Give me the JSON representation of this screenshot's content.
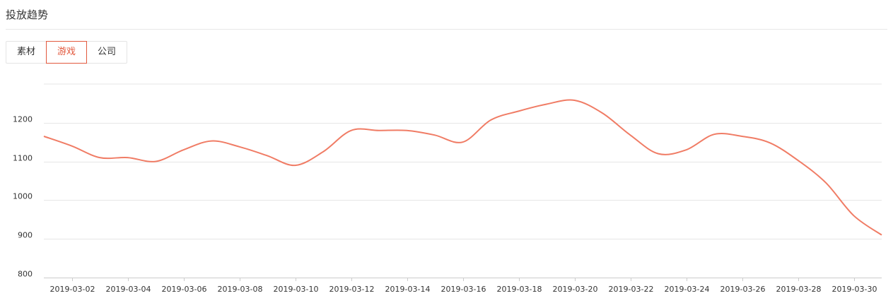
{
  "header": {
    "title": "投放趋势"
  },
  "tabs": [
    {
      "label": "素材",
      "active": false
    },
    {
      "label": "游戏",
      "active": true
    },
    {
      "label": "公司",
      "active": false
    }
  ],
  "colors": {
    "accent": "#e2583d",
    "line": "#f07c65",
    "grid": "#e6e6e6"
  },
  "chart_data": {
    "type": "line",
    "title": "",
    "xlabel": "",
    "ylabel": "",
    "ylim": [
      800,
      1300
    ],
    "yticks": [
      800,
      900,
      1000,
      1100,
      1200
    ],
    "grid": true,
    "x": [
      "2019-03-01",
      "2019-03-02",
      "2019-03-03",
      "2019-03-04",
      "2019-03-05",
      "2019-03-06",
      "2019-03-07",
      "2019-03-08",
      "2019-03-09",
      "2019-03-10",
      "2019-03-11",
      "2019-03-12",
      "2019-03-13",
      "2019-03-14",
      "2019-03-15",
      "2019-03-16",
      "2019-03-17",
      "2019-03-18",
      "2019-03-19",
      "2019-03-20",
      "2019-03-21",
      "2019-03-22",
      "2019-03-23",
      "2019-03-24",
      "2019-03-25",
      "2019-03-26",
      "2019-03-27",
      "2019-03-28",
      "2019-03-29",
      "2019-03-30",
      "2019-03-31"
    ],
    "xtick_labels": [
      "2019-03-02",
      "2019-03-04",
      "2019-03-06",
      "2019-03-08",
      "2019-03-10",
      "2019-03-12",
      "2019-03-14",
      "2019-03-16",
      "2019-03-18",
      "2019-03-20",
      "2019-03-22",
      "2019-03-24",
      "2019-03-26",
      "2019-03-28",
      "2019-03-30"
    ],
    "series": [
      {
        "values": [
          1165,
          1140,
          1110,
          1110,
          1100,
          1130,
          1153,
          1138,
          1115,
          1090,
          1125,
          1180,
          1180,
          1180,
          1168,
          1150,
          1207,
          1230,
          1248,
          1258,
          1225,
          1168,
          1120,
          1130,
          1170,
          1165,
          1148,
          1103,
          1045,
          960,
          910
        ]
      }
    ]
  }
}
